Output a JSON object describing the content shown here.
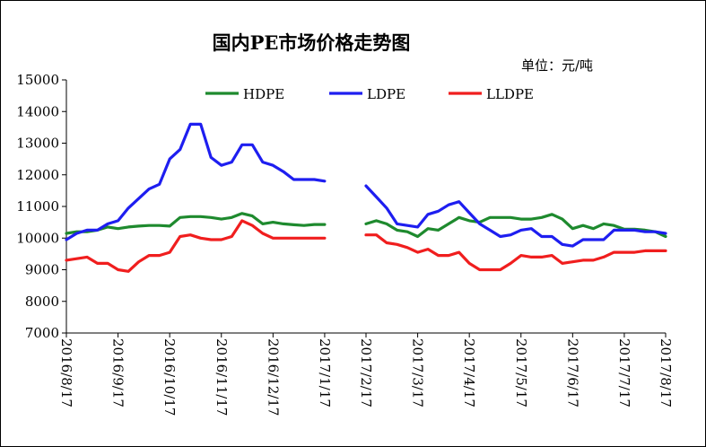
{
  "chart_data": {
    "type": "line",
    "title": "国内PE市场价格走势图",
    "unit": "单位：元/吨",
    "ylim": [
      7000,
      15000
    ],
    "yticks": [
      7000,
      8000,
      9000,
      10000,
      11000,
      12000,
      13000,
      14000,
      15000
    ],
    "xlim": [
      0,
      58
    ],
    "xticks": [
      {
        "x": 0,
        "label": "2016/8/17"
      },
      {
        "x": 5,
        "label": "2016/9/17"
      },
      {
        "x": 10,
        "label": "2016/10/17"
      },
      {
        "x": 15,
        "label": "2016/11/17"
      },
      {
        "x": 20,
        "label": "2016/12/17"
      },
      {
        "x": 25,
        "label": "2017/1/17"
      },
      {
        "x": 29,
        "label": "2017/2/17"
      },
      {
        "x": 34,
        "label": "2017/3/17"
      },
      {
        "x": 39,
        "label": "2017/4/17"
      },
      {
        "x": 44,
        "label": "2017/5/17"
      },
      {
        "x": 49,
        "label": "2017/6/17"
      },
      {
        "x": 54,
        "label": "2017/7/17"
      },
      {
        "x": 59,
        "label": "2017/8/17"
      }
    ],
    "grid": false,
    "legend_position": "top",
    "series": [
      {
        "name": "HDPE",
        "color": "#1e8a2e",
        "segments": [
          {
            "x": [
              0,
              1,
              2,
              3,
              4,
              5,
              6,
              7,
              8,
              9,
              10,
              11,
              12,
              13,
              14,
              15,
              16,
              17,
              18,
              19,
              20,
              21,
              22,
              23,
              24,
              25
            ],
            "y": [
              10150,
              10200,
              10200,
              10250,
              10350,
              10300,
              10350,
              10380,
              10400,
              10400,
              10380,
              10650,
              10680,
              10680,
              10650,
              10600,
              10650,
              10780,
              10700,
              10450,
              10500,
              10450,
              10420,
              10400,
              10430,
              10430
            ]
          },
          {
            "x": [
              29,
              30,
              31,
              32,
              33,
              34,
              35,
              36,
              37,
              38,
              39,
              40,
              41,
              42,
              43,
              44,
              45,
              46,
              47,
              48,
              49,
              50,
              51,
              52,
              53,
              54,
              55,
              56,
              57,
              58
            ],
            "y": [
              10450,
              10550,
              10450,
              10250,
              10200,
              10050,
              10300,
              10250,
              10450,
              10650,
              10550,
              10500,
              10650,
              10650,
              10650,
              10600,
              10600,
              10650,
              10750,
              10600,
              10300,
              10400,
              10300,
              10450,
              10400,
              10280,
              10280,
              10250,
              10200,
              10050
            ]
          }
        ]
      },
      {
        "name": "LDPE",
        "color": "#1e1ef0",
        "segments": [
          {
            "x": [
              0,
              1,
              2,
              3,
              4,
              5,
              6,
              7,
              8,
              9,
              10,
              11,
              12,
              13,
              14,
              15,
              16,
              17,
              18,
              19,
              20,
              21,
              22,
              23,
              24,
              25
            ],
            "y": [
              9950,
              10150,
              10250,
              10250,
              10450,
              10550,
              10950,
              11250,
              11550,
              11700,
              12500,
              12800,
              13600,
              13600,
              12550,
              12300,
              12400,
              12950,
              12950,
              12400,
              12300,
              12100,
              11850,
              11850,
              11850,
              11800
            ]
          },
          {
            "x": [
              29,
              30,
              31,
              32,
              33,
              34,
              35,
              36,
              37,
              38,
              39,
              40,
              41,
              42,
              43,
              44,
              45,
              46,
              47,
              48,
              49,
              50,
              51,
              52,
              53,
              54,
              55,
              56,
              57,
              58
            ],
            "y": [
              11650,
              11300,
              10950,
              10450,
              10400,
              10350,
              10750,
              10850,
              11050,
              11150,
              10800,
              10450,
              10250,
              10050,
              10100,
              10250,
              10300,
              10050,
              10050,
              9800,
              9750,
              9950,
              9950,
              9950,
              10250,
              10250,
              10250,
              10200,
              10200,
              10150
            ]
          }
        ]
      },
      {
        "name": "LLDPE",
        "color": "#f01e1e",
        "segments": [
          {
            "x": [
              0,
              1,
              2,
              3,
              4,
              5,
              6,
              7,
              8,
              9,
              10,
              11,
              12,
              13,
              14,
              15,
              16,
              17,
              18,
              19,
              20,
              21,
              22,
              23,
              24,
              25
            ],
            "y": [
              9300,
              9350,
              9400,
              9200,
              9200,
              9000,
              8950,
              9250,
              9450,
              9450,
              9550,
              10050,
              10100,
              10000,
              9950,
              9950,
              10050,
              10550,
              10400,
              10150,
              10000,
              10000,
              10000,
              10000,
              10000,
              10000
            ]
          },
          {
            "x": [
              29,
              30,
              31,
              32,
              33,
              34,
              35,
              36,
              37,
              38,
              39,
              40,
              41,
              42,
              43,
              44,
              45,
              46,
              47,
              48,
              49,
              50,
              51,
              52,
              53,
              54,
              55,
              56,
              57,
              58
            ],
            "y": [
              10100,
              10100,
              9850,
              9800,
              9700,
              9550,
              9650,
              9450,
              9450,
              9550,
              9200,
              9000,
              9000,
              9000,
              9200,
              9450,
              9400,
              9400,
              9450,
              9200,
              9250,
              9300,
              9300,
              9400,
              9550,
              9550,
              9550,
              9600,
              9600,
              9600
            ]
          }
        ]
      }
    ]
  }
}
